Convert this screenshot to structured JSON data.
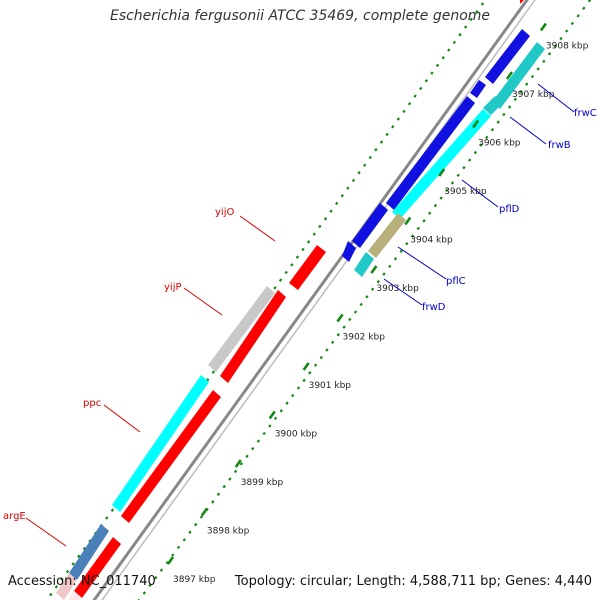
{
  "title": "Escherichia fergusonii ATCC 35469, complete genome",
  "footer": {
    "accession": "Accession: NC_011740",
    "summary": "Topology: circular; Length: 4,588,711 bp; Genes: 4,440"
  },
  "ticks": [
    {
      "label": "3897 kbp",
      "kbp": 3897
    },
    {
      "label": "3898 kbp",
      "kbp": 3898
    },
    {
      "label": "3899 kbp",
      "kbp": 3899
    },
    {
      "label": "3900 kbp",
      "kbp": 3900
    },
    {
      "label": "3901 kbp",
      "kbp": 3901
    },
    {
      "label": "3902 kbp",
      "kbp": 3902
    },
    {
      "label": "3903 kbp",
      "kbp": 3903
    },
    {
      "label": "3904 kbp",
      "kbp": 3904
    },
    {
      "label": "3905 kbp",
      "kbp": 3905
    },
    {
      "label": "3906 kbp",
      "kbp": 3906
    },
    {
      "label": "3907 kbp",
      "kbp": 3907
    },
    {
      "label": "3908 kbp",
      "kbp": 3908
    }
  ],
  "gene_labels": {
    "left": [
      "yijO",
      "yijP",
      "ppc",
      "argE"
    ],
    "right": [
      "frwC",
      "frwB",
      "pflD",
      "pflC",
      "frwD"
    ]
  },
  "colors": {
    "backbone": "#888888",
    "red_cds": "#ff0000",
    "blue_cds": "#1010e0",
    "cyan_cds": "#00ffff",
    "teal_cds": "#20c8c8",
    "gray_cds": "#c8c8c8",
    "steel_cds": "#4a80b8",
    "olive_cds": "#b8b07a",
    "tick_green": "#118811",
    "left_label": "#dd0000",
    "right_label": "#0000cc"
  }
}
